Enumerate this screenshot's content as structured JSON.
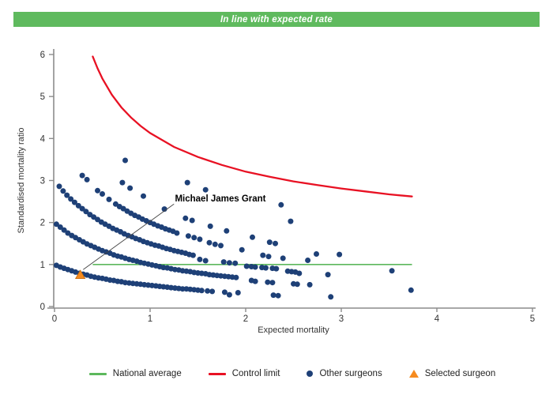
{
  "header": {
    "title": "In line with expected rate",
    "bg": "#5fba5e",
    "text_color": "#ffffff"
  },
  "chart_data": {
    "type": "scatter",
    "xlabel": "Expected mortality",
    "ylabel": "Standardised mortality ratio",
    "xlim": [
      0,
      5
    ],
    "ylim": [
      0,
      6
    ],
    "xticks": [
      0,
      1,
      2,
      3,
      4,
      5
    ],
    "yticks": [
      0,
      1,
      2,
      3,
      4,
      5,
      6
    ],
    "grid": false,
    "axis_color": "#8c8c8c",
    "tick_label_color": "#333333",
    "national_average": {
      "label": "National average",
      "color": "#5cb85c",
      "y": 1,
      "x_start": 0.4,
      "x_end": 3.74
    },
    "control_limit": {
      "label": "Control limit",
      "color": "#e81123",
      "points": [
        [
          0.4,
          5.95
        ],
        [
          0.45,
          5.67
        ],
        [
          0.5,
          5.43
        ],
        [
          0.6,
          5.04
        ],
        [
          0.7,
          4.74
        ],
        [
          0.8,
          4.5
        ],
        [
          0.9,
          4.3
        ],
        [
          1.0,
          4.13
        ],
        [
          1.25,
          3.8
        ],
        [
          1.5,
          3.56
        ],
        [
          1.75,
          3.37
        ],
        [
          2.0,
          3.21
        ],
        [
          2.25,
          3.09
        ],
        [
          2.5,
          2.98
        ],
        [
          2.75,
          2.89
        ],
        [
          3.0,
          2.81
        ],
        [
          3.25,
          2.74
        ],
        [
          3.5,
          2.67
        ],
        [
          3.74,
          2.62
        ]
      ]
    },
    "other_surgeons": {
      "label": "Other surgeons",
      "color": "#1e4077",
      "marker_radius_px": 3.5,
      "points": [
        [
          0.02,
          0.98
        ],
        [
          0.06,
          0.94
        ],
        [
          0.1,
          0.91
        ],
        [
          0.14,
          0.88
        ],
        [
          0.18,
          0.85
        ],
        [
          0.22,
          0.82
        ],
        [
          0.26,
          0.79
        ],
        [
          0.3,
          0.77
        ],
        [
          0.34,
          0.75
        ],
        [
          0.38,
          0.72
        ],
        [
          0.42,
          0.7
        ],
        [
          0.46,
          0.68
        ],
        [
          0.5,
          0.67
        ],
        [
          0.54,
          0.65
        ],
        [
          0.58,
          0.63
        ],
        [
          0.62,
          0.62
        ],
        [
          0.66,
          0.6
        ],
        [
          0.7,
          0.59
        ],
        [
          0.74,
          0.57
        ],
        [
          0.78,
          0.56
        ],
        [
          0.82,
          0.55
        ],
        [
          0.86,
          0.54
        ],
        [
          0.9,
          0.53
        ],
        [
          0.94,
          0.52
        ],
        [
          0.98,
          0.51
        ],
        [
          1.02,
          0.5
        ],
        [
          1.06,
          0.49
        ],
        [
          1.1,
          0.48
        ],
        [
          1.14,
          0.47
        ],
        [
          1.18,
          0.46
        ],
        [
          1.22,
          0.45
        ],
        [
          1.26,
          0.44
        ],
        [
          1.3,
          0.43
        ],
        [
          1.34,
          0.42
        ],
        [
          1.38,
          0.42
        ],
        [
          1.42,
          0.41
        ],
        [
          1.46,
          0.4
        ],
        [
          1.5,
          0.39
        ],
        [
          1.54,
          0.38
        ],
        [
          1.6,
          0.37
        ],
        [
          1.65,
          0.36
        ],
        [
          1.78,
          0.34
        ],
        [
          1.83,
          0.28
        ],
        [
          1.92,
          0.33
        ],
        [
          2.29,
          0.27
        ],
        [
          2.34,
          0.26
        ],
        [
          2.89,
          0.23
        ],
        [
          0.02,
          1.96
        ],
        [
          0.06,
          1.89
        ],
        [
          0.1,
          1.82
        ],
        [
          0.14,
          1.75
        ],
        [
          0.18,
          1.69
        ],
        [
          0.22,
          1.64
        ],
        [
          0.26,
          1.59
        ],
        [
          0.3,
          1.54
        ],
        [
          0.34,
          1.49
        ],
        [
          0.38,
          1.45
        ],
        [
          0.42,
          1.41
        ],
        [
          0.46,
          1.37
        ],
        [
          0.5,
          1.33
        ],
        [
          0.54,
          1.3
        ],
        [
          0.58,
          1.27
        ],
        [
          0.62,
          1.23
        ],
        [
          0.66,
          1.2
        ],
        [
          0.7,
          1.18
        ],
        [
          0.74,
          1.15
        ],
        [
          0.78,
          1.12
        ],
        [
          0.82,
          1.1
        ],
        [
          0.86,
          1.08
        ],
        [
          0.9,
          1.05
        ],
        [
          0.94,
          1.03
        ],
        [
          0.98,
          1.01
        ],
        [
          1.02,
          0.99
        ],
        [
          1.06,
          0.97
        ],
        [
          1.1,
          0.95
        ],
        [
          1.14,
          0.93
        ],
        [
          1.18,
          0.92
        ],
        [
          1.22,
          0.9
        ],
        [
          1.26,
          0.88
        ],
        [
          1.3,
          0.87
        ],
        [
          1.34,
          0.85
        ],
        [
          1.38,
          0.84
        ],
        [
          1.42,
          0.83
        ],
        [
          1.46,
          0.81
        ],
        [
          1.5,
          0.8
        ],
        [
          1.54,
          0.79
        ],
        [
          1.58,
          0.78
        ],
        [
          1.62,
          0.76
        ],
        [
          1.66,
          0.75
        ],
        [
          1.7,
          0.74
        ],
        [
          1.74,
          0.73
        ],
        [
          1.78,
          0.72
        ],
        [
          1.82,
          0.71
        ],
        [
          1.86,
          0.7
        ],
        [
          1.9,
          0.69
        ],
        [
          2.06,
          0.62
        ],
        [
          2.1,
          0.6
        ],
        [
          2.23,
          0.58
        ],
        [
          2.28,
          0.57
        ],
        [
          2.5,
          0.54
        ],
        [
          2.54,
          0.53
        ],
        [
          2.67,
          0.52
        ],
        [
          3.73,
          0.39
        ],
        [
          0.05,
          2.86
        ],
        [
          0.09,
          2.75
        ],
        [
          0.13,
          2.65
        ],
        [
          0.17,
          2.56
        ],
        [
          0.21,
          2.48
        ],
        [
          0.25,
          2.4
        ],
        [
          0.29,
          2.33
        ],
        [
          0.33,
          2.26
        ],
        [
          0.37,
          2.19
        ],
        [
          0.41,
          2.13
        ],
        [
          0.45,
          2.07
        ],
        [
          0.49,
          2.01
        ],
        [
          0.53,
          1.96
        ],
        [
          0.57,
          1.91
        ],
        [
          0.61,
          1.86
        ],
        [
          0.65,
          1.82
        ],
        [
          0.69,
          1.78
        ],
        [
          0.73,
          1.73
        ],
        [
          0.77,
          1.69
        ],
        [
          0.81,
          1.66
        ],
        [
          0.85,
          1.62
        ],
        [
          0.89,
          1.59
        ],
        [
          0.93,
          1.55
        ],
        [
          0.97,
          1.52
        ],
        [
          1.01,
          1.49
        ],
        [
          1.05,
          1.46
        ],
        [
          1.09,
          1.44
        ],
        [
          1.13,
          1.41
        ],
        [
          1.17,
          1.38
        ],
        [
          1.21,
          1.36
        ],
        [
          1.25,
          1.33
        ],
        [
          1.29,
          1.31
        ],
        [
          1.33,
          1.29
        ],
        [
          1.37,
          1.27
        ],
        [
          1.41,
          1.24
        ],
        [
          1.45,
          1.22
        ],
        [
          1.52,
          1.12
        ],
        [
          1.58,
          1.09
        ],
        [
          1.77,
          1.06
        ],
        [
          1.83,
          1.04
        ],
        [
          1.89,
          1.03
        ],
        [
          2.01,
          0.96
        ],
        [
          2.06,
          0.95
        ],
        [
          2.1,
          0.94
        ],
        [
          2.17,
          0.93
        ],
        [
          2.21,
          0.92
        ],
        [
          2.28,
          0.91
        ],
        [
          2.32,
          0.9
        ],
        [
          2.44,
          0.84
        ],
        [
          2.48,
          0.83
        ],
        [
          2.52,
          0.82
        ],
        [
          2.56,
          0.79
        ],
        [
          2.86,
          0.76
        ],
        [
          0.29,
          3.12
        ],
        [
          0.34,
          3.02
        ],
        [
          0.45,
          2.76
        ],
        [
          0.5,
          2.68
        ],
        [
          0.57,
          2.55
        ],
        [
          0.64,
          2.44
        ],
        [
          0.68,
          2.38
        ],
        [
          0.72,
          2.33
        ],
        [
          0.76,
          2.27
        ],
        [
          0.8,
          2.22
        ],
        [
          0.84,
          2.17
        ],
        [
          0.88,
          2.13
        ],
        [
          0.92,
          2.08
        ],
        [
          0.96,
          2.04
        ],
        [
          1.0,
          2.0
        ],
        [
          1.04,
          1.96
        ],
        [
          1.08,
          1.92
        ],
        [
          1.12,
          1.89
        ],
        [
          1.16,
          1.85
        ],
        [
          1.2,
          1.82
        ],
        [
          1.24,
          1.79
        ],
        [
          1.28,
          1.75
        ],
        [
          1.4,
          1.68
        ],
        [
          1.46,
          1.64
        ],
        [
          1.52,
          1.6
        ],
        [
          1.62,
          1.52
        ],
        [
          1.68,
          1.48
        ],
        [
          1.74,
          1.45
        ],
        [
          1.96,
          1.35
        ],
        [
          2.18,
          1.22
        ],
        [
          2.24,
          1.19
        ],
        [
          2.39,
          1.15
        ],
        [
          2.65,
          1.1
        ],
        [
          3.53,
          0.85
        ],
        [
          0.71,
          2.95
        ],
        [
          0.79,
          2.82
        ],
        [
          0.93,
          2.63
        ],
        [
          1.15,
          2.32
        ],
        [
          1.37,
          2.1
        ],
        [
          1.44,
          2.05
        ],
        [
          1.63,
          1.91
        ],
        [
          1.8,
          1.8
        ],
        [
          2.07,
          1.65
        ],
        [
          2.25,
          1.53
        ],
        [
          2.31,
          1.5
        ],
        [
          2.74,
          1.25
        ],
        [
          2.98,
          1.24
        ],
        [
          0.74,
          3.48
        ],
        [
          1.39,
          2.95
        ],
        [
          1.58,
          2.78
        ],
        [
          2.47,
          2.03
        ],
        [
          2.37,
          2.42
        ]
      ]
    },
    "selected_surgeon": {
      "label": "Selected surgeon",
      "color": "#f68b1f",
      "edge_color": "#c06a10",
      "point": [
        0.27,
        0.76
      ]
    },
    "annotation": {
      "text": "Michael James Grant",
      "text_x": 1.26,
      "text_y": 2.5,
      "line_from": [
        1.25,
        2.44
      ],
      "line_to": [
        0.3,
        0.88
      ],
      "color": "#000000",
      "line_color": "#444444"
    }
  },
  "legend": {
    "items": [
      {
        "label": "National average",
        "swatch": "line",
        "series": "national_average"
      },
      {
        "label": "Control limit",
        "swatch": "line",
        "series": "control_limit"
      },
      {
        "label": "Other surgeons",
        "swatch": "dot",
        "series": "other_surgeons"
      },
      {
        "label": "Selected surgeon",
        "swatch": "triangle",
        "series": "selected_surgeon"
      }
    ]
  }
}
